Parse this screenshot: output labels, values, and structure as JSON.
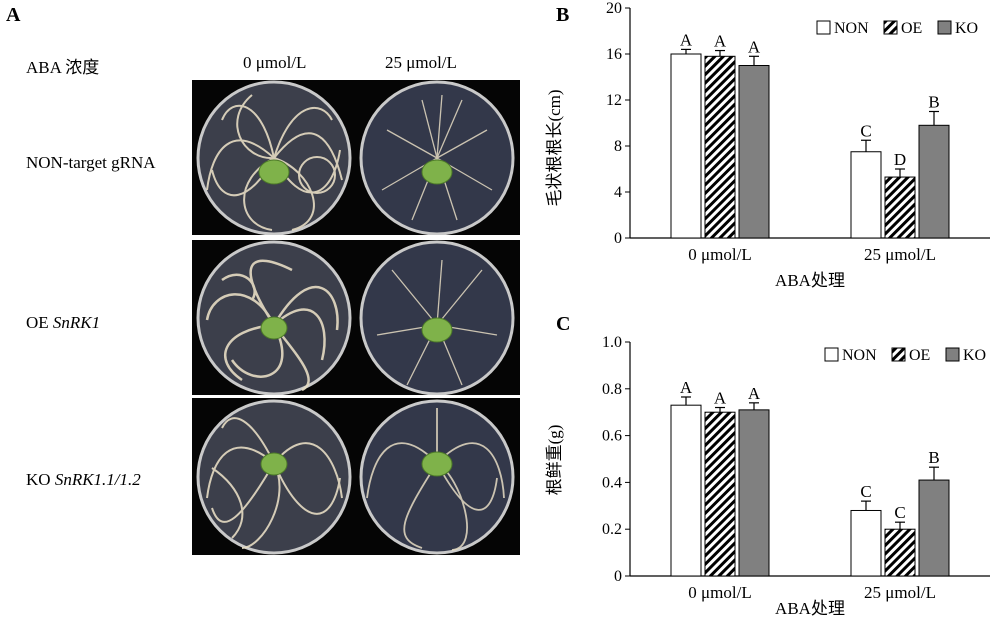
{
  "panel_a": {
    "label": "A",
    "header_label": "ABA 浓度",
    "col0": "0 μmol/L",
    "col1": "25 μmol/L",
    "rows": [
      {
        "name": "NON-target gRNA",
        "prefix": "NON-target gRNA",
        "gene": ""
      },
      {
        "name": "OE SnRK1",
        "prefix": "OE ",
        "gene": "SnRK1"
      },
      {
        "name": "KO SnRK1.1/1.2",
        "prefix": "KO ",
        "gene": "SnRK1.1/1.2"
      }
    ],
    "colors": {
      "dish_bg": "#3a3d4a",
      "root": "#e9e2cf",
      "seed": "#7fb24a"
    }
  },
  "chart_data": [
    {
      "panel": "B",
      "type": "bar",
      "categories": [
        "0 μmol/L",
        "25 μmol/L"
      ],
      "series": [
        {
          "name": "NON",
          "values": [
            16.0,
            7.5
          ],
          "errors": [
            0.4,
            1.0
          ],
          "letters": [
            "A",
            "C"
          ],
          "fill": "#ffffff"
        },
        {
          "name": "OE",
          "values": [
            15.8,
            5.3
          ],
          "errors": [
            0.5,
            0.7
          ],
          "letters": [
            "A",
            "D"
          ],
          "fill": "hatch"
        },
        {
          "name": "KO",
          "values": [
            15.0,
            9.8
          ],
          "errors": [
            0.8,
            1.2
          ],
          "letters": [
            "A",
            "B"
          ],
          "fill": "#808080"
        }
      ],
      "ylabel": "毛状根根长(cm)",
      "xlabel": "ABA处理",
      "ylim": [
        0,
        20
      ],
      "yticks": [
        "0",
        "4",
        "8",
        "12",
        "16",
        "20"
      ],
      "legend": "top-right",
      "grid": false
    },
    {
      "panel": "C",
      "type": "bar",
      "categories": [
        "0 μmol/L",
        "25 μmol/L"
      ],
      "series": [
        {
          "name": "NON",
          "values": [
            0.73,
            0.28
          ],
          "errors": [
            0.035,
            0.04
          ],
          "letters": [
            "A",
            "C"
          ],
          "fill": "#ffffff"
        },
        {
          "name": "OE",
          "values": [
            0.7,
            0.2
          ],
          "errors": [
            0.02,
            0.03
          ],
          "letters": [
            "A",
            "C"
          ],
          "fill": "hatch"
        },
        {
          "name": "KO",
          "values": [
            0.71,
            0.41
          ],
          "errors": [
            0.03,
            0.055
          ],
          "letters": [
            "A",
            "B"
          ],
          "fill": "#808080"
        }
      ],
      "ylabel": "根鲜重(g)",
      "xlabel": "ABA处理",
      "ylim": [
        0,
        1.0
      ],
      "yticks": [
        "0",
        "0.2",
        "0.4",
        "0.6",
        "0.8",
        "1.0"
      ],
      "legend": "top-right",
      "grid": false
    }
  ]
}
